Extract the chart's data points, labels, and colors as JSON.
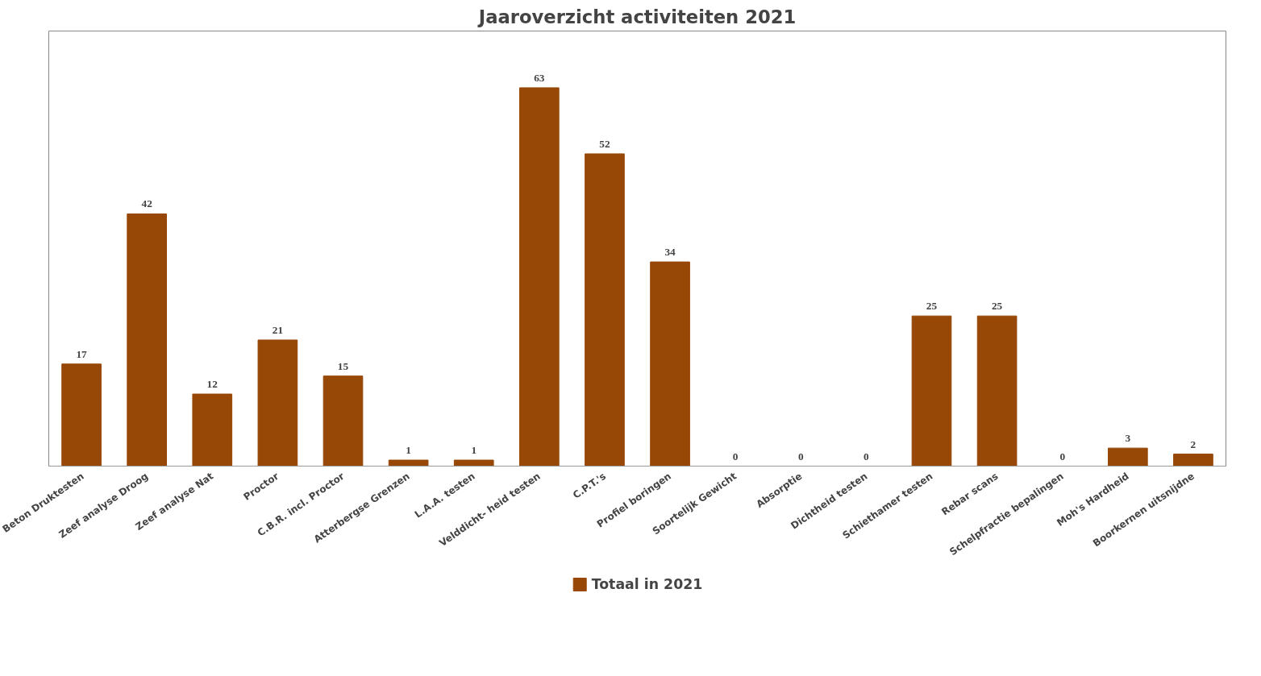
{
  "chart_data": {
    "type": "bar",
    "title": "Jaaroverzicht activiteiten 2021",
    "categories": [
      "Beton Druktesten",
      "Zeef analyse Droog",
      "Zeef analyse Nat",
      "Proctor",
      "C.B.R. incl. Proctor",
      "Atterbergse Grenzen",
      "L.A.A. testen",
      "Velddicht- heid testen",
      "C.P.T.'s",
      "Profiel boringen",
      "Soortelijk Gewicht",
      "Absorptie",
      "Dichtheid testen",
      "Schiethamer testen",
      "Rebar scans",
      "Schelpfractie bepalingen",
      "Moh's Hardheid",
      "Boorkernen uitsnijdne"
    ],
    "series": [
      {
        "name": "Totaal in 2021",
        "color": "#974706",
        "values": [
          17,
          42,
          12,
          21,
          15,
          1,
          1,
          63,
          52,
          34,
          0,
          0,
          0,
          25,
          25,
          0,
          3,
          2
        ]
      }
    ],
    "data_labels": true,
    "grid": false,
    "legend": "bottom"
  }
}
